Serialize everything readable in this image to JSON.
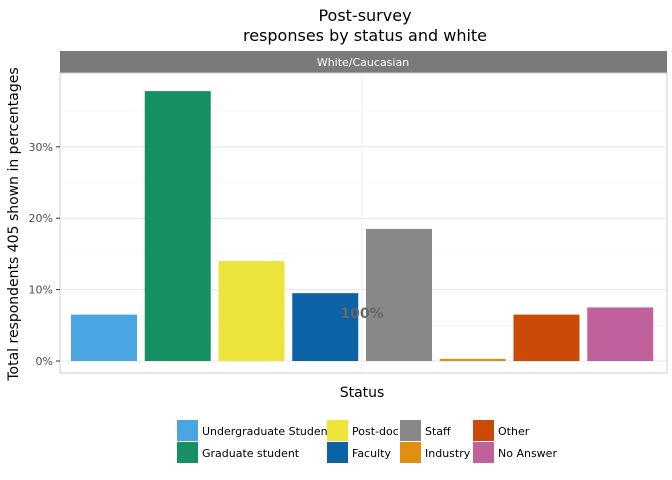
{
  "chart_data": {
    "type": "bar",
    "title": "Post-survey\nresponses by status and white",
    "facet_label": "White/Caucasian",
    "xlabel": "Status",
    "ylabel": "Total respondents 405 shown in percentages",
    "ylim": [
      0,
      0.4
    ],
    "yticks": [
      0,
      0.1,
      0.2,
      0.3
    ],
    "ytick_labels": [
      "0%",
      "10%",
      "20%",
      "30%"
    ],
    "grid": true,
    "legend_position": "bottom",
    "annotation": "100%",
    "annotation_y": 0.067,
    "categories": [
      "Undergraduate Student",
      "Graduate student",
      "Post-doc",
      "Faculty",
      "Staff",
      "Industry",
      "Other",
      "No Answer"
    ],
    "values": [
      0.065,
      0.378,
      0.14,
      0.095,
      0.185,
      0.003,
      0.065,
      0.075
    ],
    "colors": [
      "#4aa6e3",
      "#168f63",
      "#ece33b",
      "#0b63a6",
      "#888888",
      "#e08f10",
      "#cc4a08",
      "#c0619b"
    ]
  }
}
